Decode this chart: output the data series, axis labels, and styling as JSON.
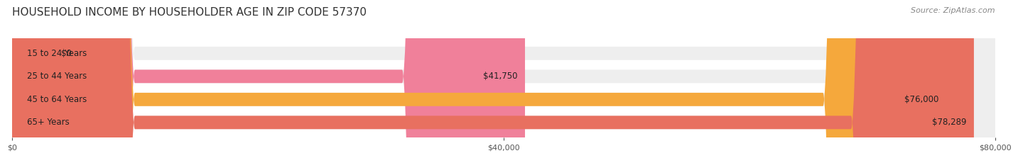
{
  "title": "HOUSEHOLD INCOME BY HOUSEHOLDER AGE IN ZIP CODE 57370",
  "source_text": "Source: ZipAtlas.com",
  "categories": [
    "15 to 24 Years",
    "25 to 44 Years",
    "45 to 64 Years",
    "65+ Years"
  ],
  "values": [
    0,
    41750,
    76000,
    78289
  ],
  "value_labels": [
    "$0",
    "$41,750",
    "$76,000",
    "$78,289"
  ],
  "bar_colors": [
    "#b0b8e8",
    "#f0809a",
    "#f5a83c",
    "#e87060"
  ],
  "bar_bg_color": "#eeeeee",
  "bg_color": "#ffffff",
  "xlim": [
    0,
    80000
  ],
  "xtick_values": [
    0,
    40000,
    80000
  ],
  "xtick_labels": [
    "$0",
    "$40,000",
    "$80,000"
  ],
  "title_fontsize": 11,
  "source_fontsize": 8,
  "label_fontsize": 8.5,
  "bar_height": 0.58,
  "rounding_size": 10000,
  "small_rounding_size": 2500
}
